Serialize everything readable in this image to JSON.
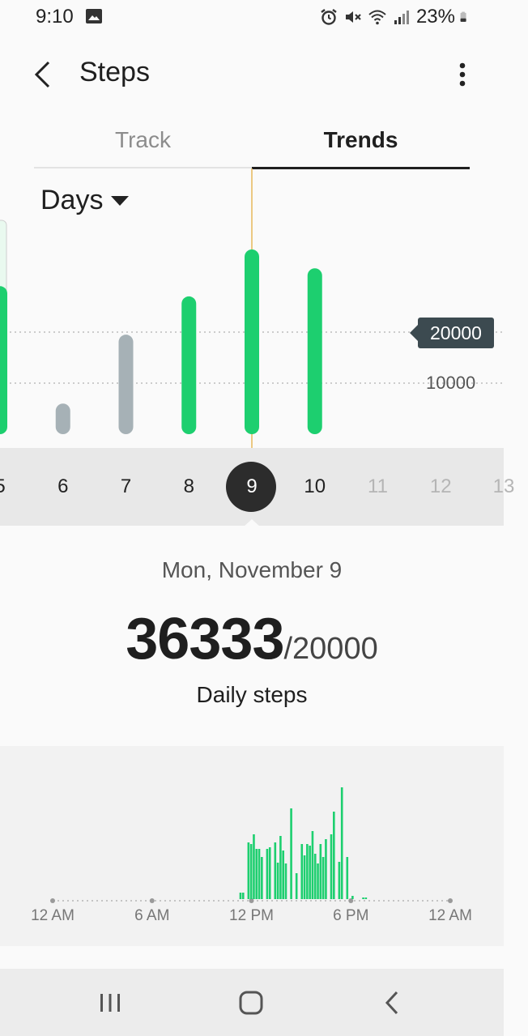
{
  "status_bar": {
    "time": "9:10",
    "battery": "23%",
    "icons": [
      "image-icon",
      "alarm-icon",
      "mute-icon",
      "wifi-icon",
      "signal-icon",
      "battery-icon"
    ]
  },
  "app_bar": {
    "title": "Steps",
    "back_icon": "chevron-left-icon",
    "more_icon": "more-vert-icon"
  },
  "tabs": [
    {
      "label": "Track",
      "selected": false
    },
    {
      "label": "Trends",
      "selected": true
    }
  ],
  "period": {
    "label": "Days",
    "icon": "caret-down-icon"
  },
  "chart_data": [
    {
      "type": "bar",
      "categories": [
        "5",
        "6",
        "7",
        "8",
        "9",
        "10",
        "11",
        "12",
        "13"
      ],
      "values": [
        29000,
        6000,
        19500,
        27000,
        36333,
        32500,
        null,
        null,
        null
      ],
      "goal": 20000,
      "goal_label": "20000",
      "reference_lines": [
        10000,
        20000
      ],
      "reference_labels": [
        "10000"
      ],
      "selected_category": "9",
      "colors": {
        "met": "#1dcf6f",
        "missed": "#a6b1b6",
        "goal_badge": "#3c4a50"
      }
    },
    {
      "type": "bar",
      "x_labels": [
        "12 AM",
        "6 AM",
        "12 PM",
        "6 PM",
        "12 AM"
      ],
      "values": [
        0,
        0,
        0,
        0,
        0,
        0,
        0,
        0,
        0,
        0,
        0,
        0,
        0,
        0,
        0,
        0,
        0,
        0,
        0,
        0,
        0,
        0,
        0,
        0,
        0,
        0,
        0,
        0,
        0,
        0,
        0,
        0,
        0,
        0,
        0,
        0,
        0,
        0,
        0,
        0,
        0,
        0,
        0,
        0,
        0,
        0,
        0,
        0,
        0,
        0,
        0,
        0,
        0,
        0,
        0,
        0,
        0,
        0,
        0,
        0,
        0,
        0,
        0,
        0,
        0,
        0,
        0,
        0,
        0,
        0,
        8,
        8,
        0,
        70,
        68,
        80,
        62,
        62,
        52,
        0,
        62,
        64,
        0,
        70,
        45,
        78,
        60,
        44,
        0,
        112,
        0,
        32,
        0,
        68,
        54,
        68,
        66,
        84,
        56,
        44,
        68,
        52,
        74,
        0,
        80,
        108,
        0,
        46,
        138,
        0,
        52,
        0,
        4,
        0,
        0,
        0,
        2,
        2,
        0,
        0,
        0,
        0,
        0,
        0,
        0,
        0,
        0,
        0,
        0,
        0,
        0,
        0,
        0,
        0,
        0,
        0,
        0,
        0,
        0,
        0,
        0,
        0,
        0,
        0,
        0,
        0,
        0,
        0,
        0
      ],
      "color": "#1dcf6f"
    }
  ],
  "days": {
    "labels": [
      "5",
      "6",
      "7",
      "8",
      "9",
      "10",
      "11",
      "12",
      "13"
    ],
    "selected": "9"
  },
  "summary": {
    "date": "Mon, November 9",
    "steps": "36333",
    "goal": "/20000",
    "caption": "Daily steps"
  },
  "nav_bar": {
    "icons": [
      "recents-icon",
      "home-icon",
      "back-icon"
    ]
  }
}
